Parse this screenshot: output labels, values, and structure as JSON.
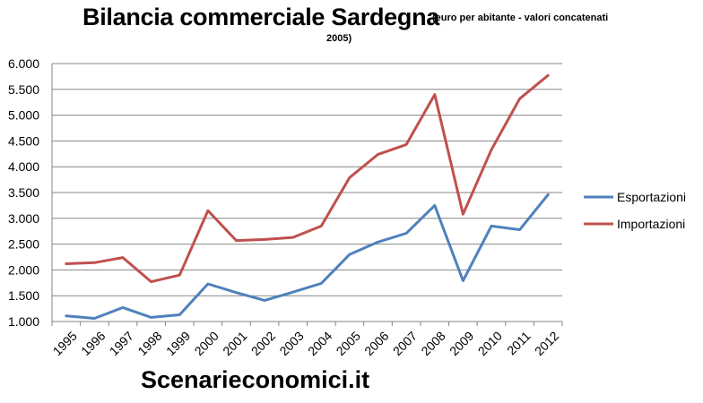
{
  "chart_data": {
    "type": "line",
    "title": "Bilancia commerciale Sardegna",
    "subtitle_line1": "(euro per abitante - valori concatenati",
    "subtitle_line2": "2005)",
    "xlabel": "",
    "ylabel": "",
    "categories": [
      "1995",
      "1996",
      "1997",
      "1998",
      "1999",
      "2000",
      "2001",
      "2002",
      "2003",
      "2004",
      "2005",
      "2006",
      "2007",
      "2008",
      "2009",
      "2010",
      "2011",
      "2012"
    ],
    "ylim": [
      1000,
      6000
    ],
    "yticks": [
      1000,
      1500,
      2000,
      2500,
      3000,
      3500,
      4000,
      4500,
      5000,
      5500,
      6000
    ],
    "ytick_labels": [
      "1.000",
      "1.500",
      "2.000",
      "2.500",
      "3.000",
      "3.500",
      "4.000",
      "4.500",
      "5.000",
      "5.500",
      "6.000"
    ],
    "grid": true,
    "legend_position": "right",
    "series": [
      {
        "name": "Esportazioni",
        "color": "#4f81bd",
        "values": [
          1110,
          1060,
          1270,
          1080,
          1130,
          1730,
          1560,
          1410,
          1570,
          1740,
          2300,
          2540,
          2710,
          3250,
          1790,
          2850,
          2780,
          3460
        ]
      },
      {
        "name": "Importazioni",
        "color": "#c0504d",
        "values": [
          2120,
          2140,
          2240,
          1770,
          1900,
          3150,
          2570,
          2590,
          2630,
          2850,
          3790,
          4240,
          4430,
          5400,
          3080,
          4330,
          5320,
          5770
        ]
      }
    ]
  },
  "footer": {
    "watermark": "Scenarieconomici.it"
  }
}
